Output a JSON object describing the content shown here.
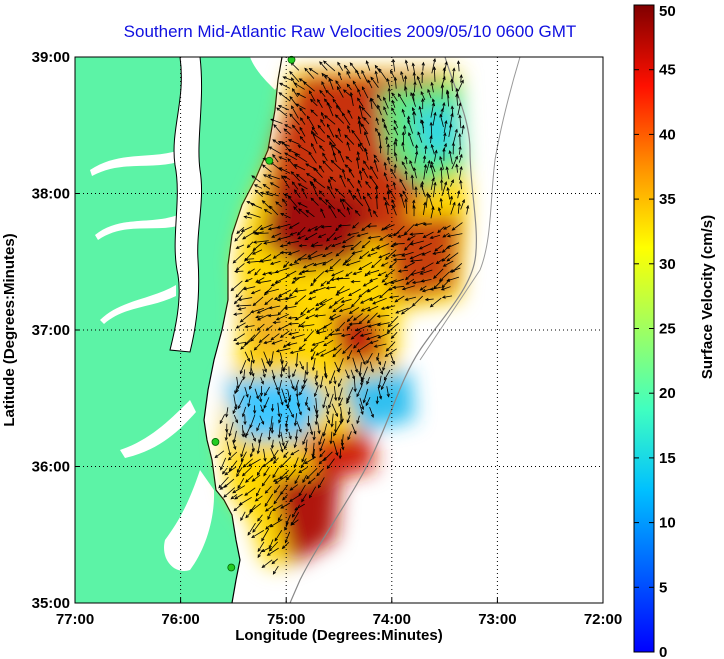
{
  "title": "Southern Mid-Atlantic Raw Velocities 2009/05/10 0600 GMT",
  "map": {
    "xlabel": "Longitude (Degrees:Minutes)",
    "ylabel": "Latitude (Degrees:Minutes)",
    "lon_ticks": [
      "77:00",
      "76:00",
      "75:00",
      "74:00",
      "73:00",
      "72:00"
    ],
    "lat_ticks": [
      "39:00",
      "38:00",
      "37:00",
      "36:00",
      "35:00"
    ],
    "lon_range": [
      -77,
      -72
    ],
    "lat_range": [
      35,
      39
    ],
    "grid": "dotted",
    "land_color": "#5cf3a6",
    "coast_color": "#000000",
    "bathymetry_color": "#888888",
    "station_color": "#22cc22",
    "station_label": "green dots"
  },
  "colorbar": {
    "label": "Surface Velocity (cm/s)",
    "ticks": [
      "0",
      "5",
      "10",
      "15",
      "20",
      "25",
      "30",
      "35",
      "40",
      "45",
      "50"
    ],
    "min": 0,
    "max": 50,
    "colormap": "jet"
  }
}
